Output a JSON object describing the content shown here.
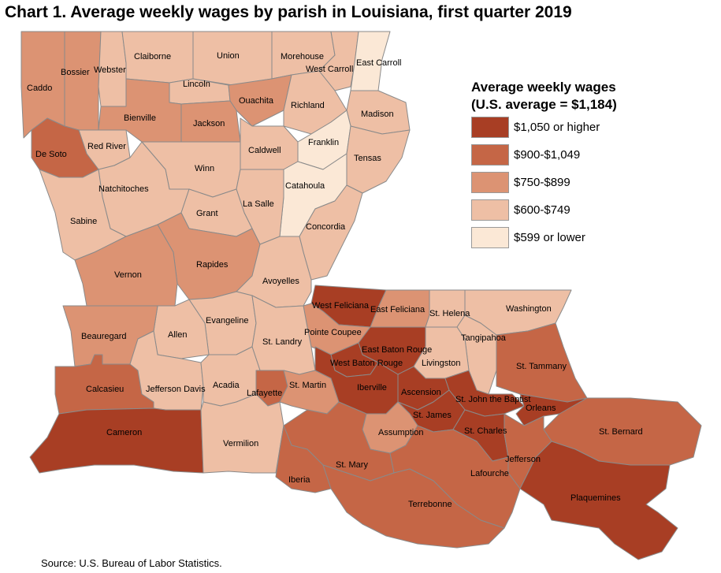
{
  "title": "Chart 1. Average weekly wages by parish in Louisiana, first quarter 2019",
  "legend": {
    "title_line1": "Average weekly wages",
    "title_line2": "(U.S. average = $1,184)",
    "classes": [
      {
        "label": "$1,050 or higher",
        "color": "#a83e24"
      },
      {
        "label": "$900-$1,049",
        "color": "#c56646"
      },
      {
        "label": "$750-$899",
        "color": "#dc9373"
      },
      {
        "label": "$600-$749",
        "color": "#eebfa5"
      },
      {
        "label": "$599 or lower",
        "color": "#fbe8d6"
      }
    ]
  },
  "parishes": [
    {
      "name": "Caddo",
      "class": 2
    },
    {
      "name": "Bossier",
      "class": 2
    },
    {
      "name": "Webster",
      "class": 3
    },
    {
      "name": "Claiborne",
      "class": 3
    },
    {
      "name": "Union",
      "class": 3
    },
    {
      "name": "Morehouse",
      "class": 3
    },
    {
      "name": "West Carroll",
      "class": 3
    },
    {
      "name": "East Carroll",
      "class": 4
    },
    {
      "name": "Lincoln",
      "class": 3
    },
    {
      "name": "Ouachita",
      "class": 2
    },
    {
      "name": "Richland",
      "class": 3
    },
    {
      "name": "Madison",
      "class": 3
    },
    {
      "name": "Bienville",
      "class": 2
    },
    {
      "name": "Jackson",
      "class": 2
    },
    {
      "name": "Franklin",
      "class": 4
    },
    {
      "name": "Red River",
      "class": 3
    },
    {
      "name": "De Soto",
      "class": 1
    },
    {
      "name": "Caldwell",
      "class": 3
    },
    {
      "name": "Tensas",
      "class": 3
    },
    {
      "name": "Winn",
      "class": 3
    },
    {
      "name": "Natchitoches",
      "class": 3
    },
    {
      "name": "Catahoula",
      "class": 4
    },
    {
      "name": "La Salle",
      "class": 3
    },
    {
      "name": "Grant",
      "class": 3
    },
    {
      "name": "Sabine",
      "class": 3
    },
    {
      "name": "Concordia",
      "class": 3
    },
    {
      "name": "Rapides",
      "class": 2
    },
    {
      "name": "Vernon",
      "class": 2
    },
    {
      "name": "Avoyelles",
      "class": 3
    },
    {
      "name": "West Feliciana",
      "class": 0
    },
    {
      "name": "East Feliciana",
      "class": 2
    },
    {
      "name": "St. Helena",
      "class": 3
    },
    {
      "name": "Washington",
      "class": 3
    },
    {
      "name": "Evangeline",
      "class": 3
    },
    {
      "name": "Allen",
      "class": 3
    },
    {
      "name": "Beauregard",
      "class": 2
    },
    {
      "name": "Pointe Coupee",
      "class": 2
    },
    {
      "name": "St. Landry",
      "class": 3
    },
    {
      "name": "East Baton Rouge",
      "class": 0
    },
    {
      "name": "Tangipahoa",
      "class": 3
    },
    {
      "name": "West Baton Rouge",
      "class": 0
    },
    {
      "name": "Livingston",
      "class": 3
    },
    {
      "name": "St. Tammany",
      "class": 1
    },
    {
      "name": "Calcasieu",
      "class": 1
    },
    {
      "name": "Jefferson Davis",
      "class": 3
    },
    {
      "name": "Acadia",
      "class": 3
    },
    {
      "name": "Lafayette",
      "class": 1
    },
    {
      "name": "St. Martin",
      "class": 2
    },
    {
      "name": "Iberville",
      "class": 0
    },
    {
      "name": "Ascension",
      "class": 0
    },
    {
      "name": "St. John the Baptist",
      "class": 0
    },
    {
      "name": "St. James",
      "class": 0
    },
    {
      "name": "Orleans",
      "class": 0
    },
    {
      "name": "Cameron",
      "class": 0
    },
    {
      "name": "Vermilion",
      "class": 3
    },
    {
      "name": "Assumption",
      "class": 2
    },
    {
      "name": "St. Charles",
      "class": 0
    },
    {
      "name": "St. Bernard",
      "class": 1
    },
    {
      "name": "St. Mary",
      "class": 1
    },
    {
      "name": "Jefferson",
      "class": 1
    },
    {
      "name": "Iberia",
      "class": 1
    },
    {
      "name": "Lafourche",
      "class": 1
    },
    {
      "name": "Terrebonne",
      "class": 1
    },
    {
      "name": "Plaquemines",
      "class": 0
    }
  ],
  "source": "Source: U.S. Bureau of Labor Statistics."
}
